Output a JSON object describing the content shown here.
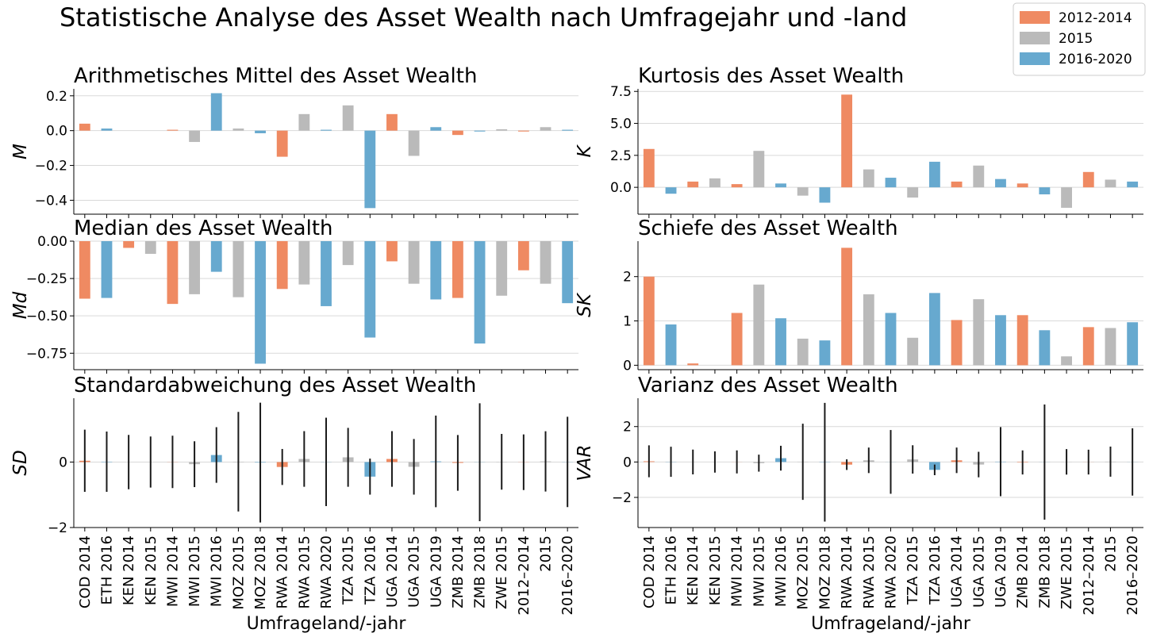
{
  "title": "Statistische Analyse des Asset Wealth nach Umfragejahr und -land",
  "legend": {
    "placement": "top-right",
    "entries": [
      {
        "label": "2012-2014",
        "color": "#ef8a62"
      },
      {
        "label": "2015",
        "color": "#bababa"
      },
      {
        "label": "2016-2020",
        "color": "#67a9cf"
      }
    ]
  },
  "categories": [
    "COD 2014",
    "ETH 2016",
    "KEN 2014",
    "KEN 2015",
    "MWI 2014",
    "MWI 2015",
    "MWI 2016",
    "MOZ 2015",
    "MOZ 2018",
    "RWA 2014",
    "RWA 2015",
    "RWA 2020",
    "TZA 2015",
    "TZA 2016",
    "UGA 2014",
    "UGA 2015",
    "UGA 2019",
    "ZMB 2014",
    "ZMB 2018",
    "ZWE 2015",
    "2012–2014",
    "2015",
    "2016–2020"
  ],
  "category_groups": [
    "2012-2014",
    "2016-2020",
    "2012-2014",
    "2015",
    "2012-2014",
    "2015",
    "2016-2020",
    "2015",
    "2016-2020",
    "2012-2014",
    "2015",
    "2016-2020",
    "2015",
    "2016-2020",
    "2012-2014",
    "2015",
    "2016-2020",
    "2012-2014",
    "2016-2020",
    "2015",
    "2012-2014",
    "2015",
    "2016-2020"
  ],
  "xlabel": "Umfrageland/-jahr",
  "chart_data": [
    {
      "type": "bar",
      "title": "Arithmetisches Mittel des Asset Wealth",
      "xlabel": "",
      "ylabel": "M",
      "ylim": [
        -0.48,
        0.24
      ],
      "yticks": [
        0.2,
        0.0,
        -0.2,
        -0.4
      ],
      "yticklabels": [
        "0.2",
        "0.0",
        "−0.2",
        "−0.4"
      ],
      "grid": "horizontal",
      "values": [
        0.04,
        0.012,
        0.0,
        0.0,
        0.005,
        -0.065,
        0.215,
        0.012,
        -0.015,
        -0.15,
        0.095,
        0.005,
        0.145,
        -0.445,
        0.095,
        -0.145,
        0.02,
        -0.025,
        -0.005,
        0.008,
        -0.005,
        0.02,
        0.005
      ]
    },
    {
      "type": "bar",
      "title": "Kurtosis des Asset Wealth",
      "xlabel": "",
      "ylabel": "K",
      "ylim": [
        -2.1,
        7.7
      ],
      "yticks": [
        7.5,
        5.0,
        2.5,
        0.0
      ],
      "yticklabels": [
        "7.5",
        "5.0",
        "2.5",
        "0.0"
      ],
      "grid": "horizontal",
      "values": [
        3.0,
        -0.5,
        0.45,
        0.7,
        0.25,
        2.85,
        0.3,
        -0.65,
        -1.2,
        7.25,
        1.4,
        0.75,
        -0.8,
        2.0,
        0.45,
        1.7,
        0.65,
        0.3,
        -0.55,
        -1.6,
        1.2,
        0.6,
        0.45
      ]
    },
    {
      "type": "bar",
      "title": "Median des Asset Wealth",
      "xlabel": "",
      "ylabel": "Md",
      "ylim": [
        -0.86,
        0.0
      ],
      "yticks": [
        0.0,
        -0.25,
        -0.5,
        -0.75
      ],
      "yticklabels": [
        "0.00",
        "−0.25",
        "−0.50",
        "−0.75"
      ],
      "grid": "horizontal",
      "values": [
        -0.385,
        -0.38,
        -0.045,
        -0.085,
        -0.42,
        -0.355,
        -0.205,
        -0.375,
        -0.82,
        -0.32,
        -0.29,
        -0.435,
        -0.16,
        -0.645,
        -0.135,
        -0.285,
        -0.39,
        -0.38,
        -0.685,
        -0.365,
        -0.195,
        -0.285,
        -0.415
      ]
    },
    {
      "type": "bar",
      "title": "Schiefe des Asset Wealth",
      "xlabel": "",
      "ylabel": "SK",
      "ylim": [
        -0.1,
        2.8
      ],
      "yticks": [
        2,
        1,
        0
      ],
      "yticklabels": [
        "2",
        "1",
        "0"
      ],
      "grid": "horizontal",
      "values": [
        2.0,
        0.92,
        0.04,
        0.0,
        1.18,
        1.82,
        1.06,
        0.6,
        0.56,
        2.65,
        1.6,
        1.18,
        0.62,
        1.63,
        1.02,
        1.49,
        1.13,
        1.13,
        0.79,
        0.2,
        0.86,
        0.84,
        0.97
      ]
    },
    {
      "type": "bar",
      "title": "Standardabweichung des Asset Wealth",
      "xlabel": "Umfrageland/-jahr",
      "ylabel": "SD",
      "ylim": [
        -2.0,
        1.95
      ],
      "yticks": [
        0,
        -2
      ],
      "yticklabels": [
        "0",
        "−2"
      ],
      "grid": "horizontal",
      "values": [
        0.04,
        0.012,
        0.0,
        0.0,
        0.005,
        -0.065,
        0.215,
        0.012,
        -0.015,
        -0.15,
        0.095,
        0.005,
        0.145,
        -0.445,
        0.095,
        -0.145,
        0.02,
        -0.025,
        -0.005,
        0.008,
        -0.005,
        0.02,
        0.005
      ],
      "error": [
        0.95,
        0.92,
        0.83,
        0.78,
        0.8,
        0.7,
        0.85,
        1.52,
        1.83,
        0.55,
        0.85,
        1.35,
        0.9,
        0.55,
        0.85,
        0.85,
        1.4,
        0.85,
        1.8,
        0.85,
        0.85,
        0.92,
        1.38
      ]
    },
    {
      "type": "bar",
      "title": "Varianz des Asset Wealth",
      "xlabel": "Umfrageland/-jahr",
      "ylabel": "VAR",
      "ylim": [
        -3.7,
        3.6
      ],
      "yticks": [
        2,
        0,
        -2
      ],
      "yticklabels": [
        "2",
        "0",
        "−2"
      ],
      "grid": "horizontal",
      "values": [
        0.04,
        0.012,
        0.0,
        0.0,
        0.005,
        -0.065,
        0.215,
        0.012,
        -0.015,
        -0.15,
        0.095,
        0.005,
        0.145,
        -0.445,
        0.095,
        -0.145,
        0.02,
        -0.025,
        -0.005,
        0.008,
        -0.005,
        0.02,
        0.005
      ],
      "error": [
        0.9,
        0.85,
        0.7,
        0.6,
        0.65,
        0.48,
        0.7,
        2.15,
        3.35,
        0.3,
        0.72,
        1.8,
        0.8,
        0.3,
        0.72,
        0.72,
        1.95,
        0.68,
        3.25,
        0.72,
        0.7,
        0.85,
        1.9
      ]
    }
  ]
}
